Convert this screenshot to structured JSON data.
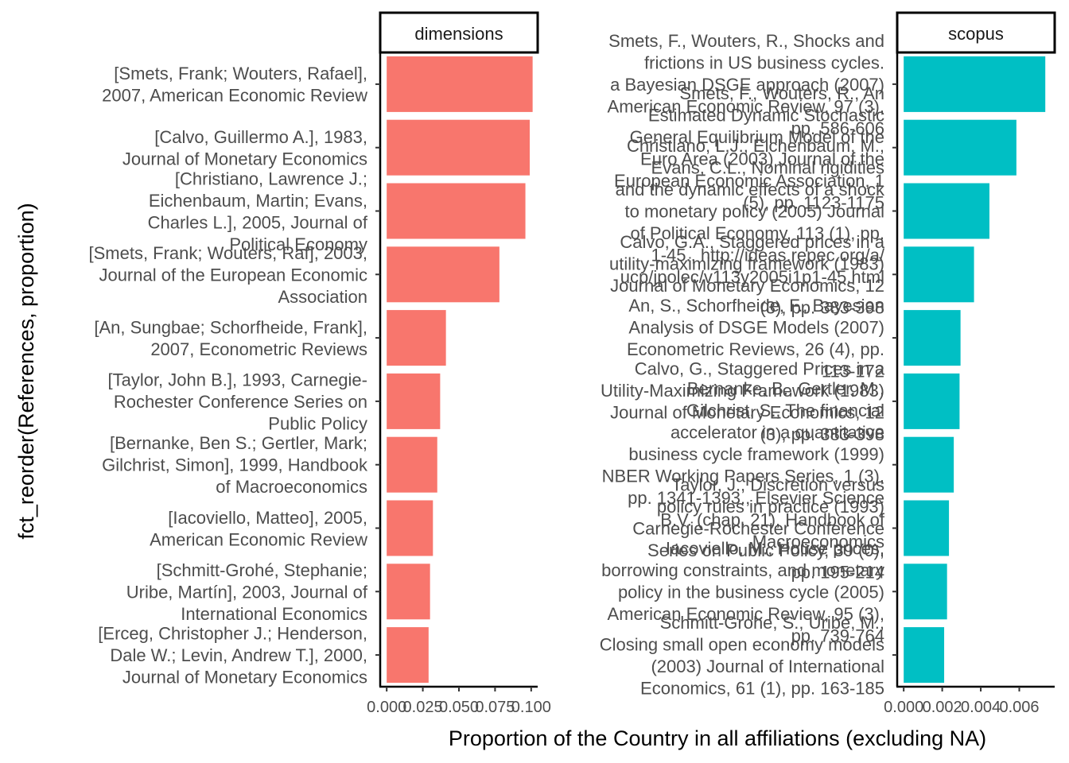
{
  "chart_data": {
    "type": "bar",
    "orientation": "horizontal",
    "xlabel": "Proportion of the Country in all affiliations (excluding NA)",
    "ylabel": "fct_reorder(References, proportion)",
    "grid": false,
    "panels": [
      {
        "strip": "dimensions",
        "color": "#F8766D",
        "xlim": [
          0,
          0.1
        ],
        "xticks": [
          "0.000",
          "0.025",
          "0.050",
          "0.075",
          "0.100"
        ],
        "categories": [
          "[Smets, Frank; Wouters, Rafael],\n2007, American Economic Review",
          "[Calvo, Guillermo A.], 1983,\nJournal of Monetary Economics",
          "[Christiano, Lawrence J.;\nEichenbaum, Martin; Evans,\nCharles L.], 2005, Journal of\nPolitical Economy",
          "[Smets, Frank; Wouters, Raf], 2003,\nJournal of the European Economic\nAssociation",
          "[An, Sungbae; Schorfheide, Frank],\n2007, Econometric Reviews",
          "[Taylor, John B.], 1993, Carnegie-\nRochester Conference Series on\nPublic Policy",
          "[Bernanke, Ben S.; Gertler, Mark;\nGilchrist, Simon], 1999, Handbook\nof Macroeconomics",
          "[Iacoviello, Matteo], 2005,\nAmerican Economic Review",
          "[Schmitt-Grohé, Stephanie;\nUribe, Martín], 2003, Journal of\nInternational Economics",
          "[Erceg, Christopher J.; Henderson,\nDale W.; Levin, Andrew T.], 2000,\nJournal of Monetary Economics"
        ],
        "values": [
          0.101,
          0.099,
          0.096,
          0.078,
          0.041,
          0.037,
          0.035,
          0.032,
          0.03,
          0.029
        ]
      },
      {
        "strip": "scopus",
        "color": "#00BFC4",
        "xlim": [
          0,
          0.0075
        ],
        "xticks": [
          "0.000",
          "0.002",
          "0.004",
          "0.006"
        ],
        "categories": [
          "Smets, F., Wouters, R., Shocks and\nfrictions in US business cycles.\na Bayesian DSGE approach (2007)\nAmerican Economic Review, 97 (3),\npp. 586-606",
          "Smets, F., Wouters, R., An\nEstimated Dynamic Stochastic\nGeneral Equilibrium Model of the\nEuro Area (2003) Journal of the\nEuropean Economic Association, 1\n(5), pp. 1123-1175",
          "Christiano, L.J., Eichenbaum, M.,\nEvans, C.L., Nominal rigidities\nand the dynamic effects of a shock\nto monetary policy (2005) Journal\nof Political Economy, 113 (1), pp.\n1-45., http://ideas.repec.org/a/\nucp/jpolec/v113y2005i1p1-45.html",
          "Calvo, G.A., Staggered prices in a\nutility-maximizing framework (1983)\nJournal of Monetary Economics, 12\n(3), pp. 383-398",
          "An, S., Schorfheide, F., Bayesian\nAnalysis of DSGE Models (2007)\nEconometric Reviews, 26 (4), pp.\n113-172",
          "Calvo, G., Staggered Prices in a\nUtility-Maximizing Framework (1983)\nJournal of Monetary Economics, 12\n(3), pp. 383-398",
          "Bernanke, B., Gertler, M.,\nGilchrist, S., The financial\naccelerator in a quantitative\nbusiness cycle framework (1999)\nNBER Working Papers Series, 1 (3),\npp. 1341-1393., Elsevier Science\nB.V. (chap. 21), Handbook of\nMacroeconomics",
          "Taylor, J., Discretion versus\npolicy rules in practice (1993)\nCarnegie-Rochester Conference\nSeries on Public Policy, 39 (0),\npp. 195-214",
          "Iacoviello, M., House prices,\nborrowing constraints, and monetary\npolicy in the business cycle (2005)\nAmerican Economic Review, 95 (3),\npp. 739-764",
          "Schmitt-Grohe, S., Uribe, M.,\nClosing small open economy models\n(2003) Journal of International\nEconomics, 61 (1), pp. 163-185"
        ],
        "values": [
          0.00735,
          0.00585,
          0.00445,
          0.00365,
          0.00295,
          0.0029,
          0.0026,
          0.00235,
          0.00225,
          0.0021
        ]
      }
    ]
  }
}
